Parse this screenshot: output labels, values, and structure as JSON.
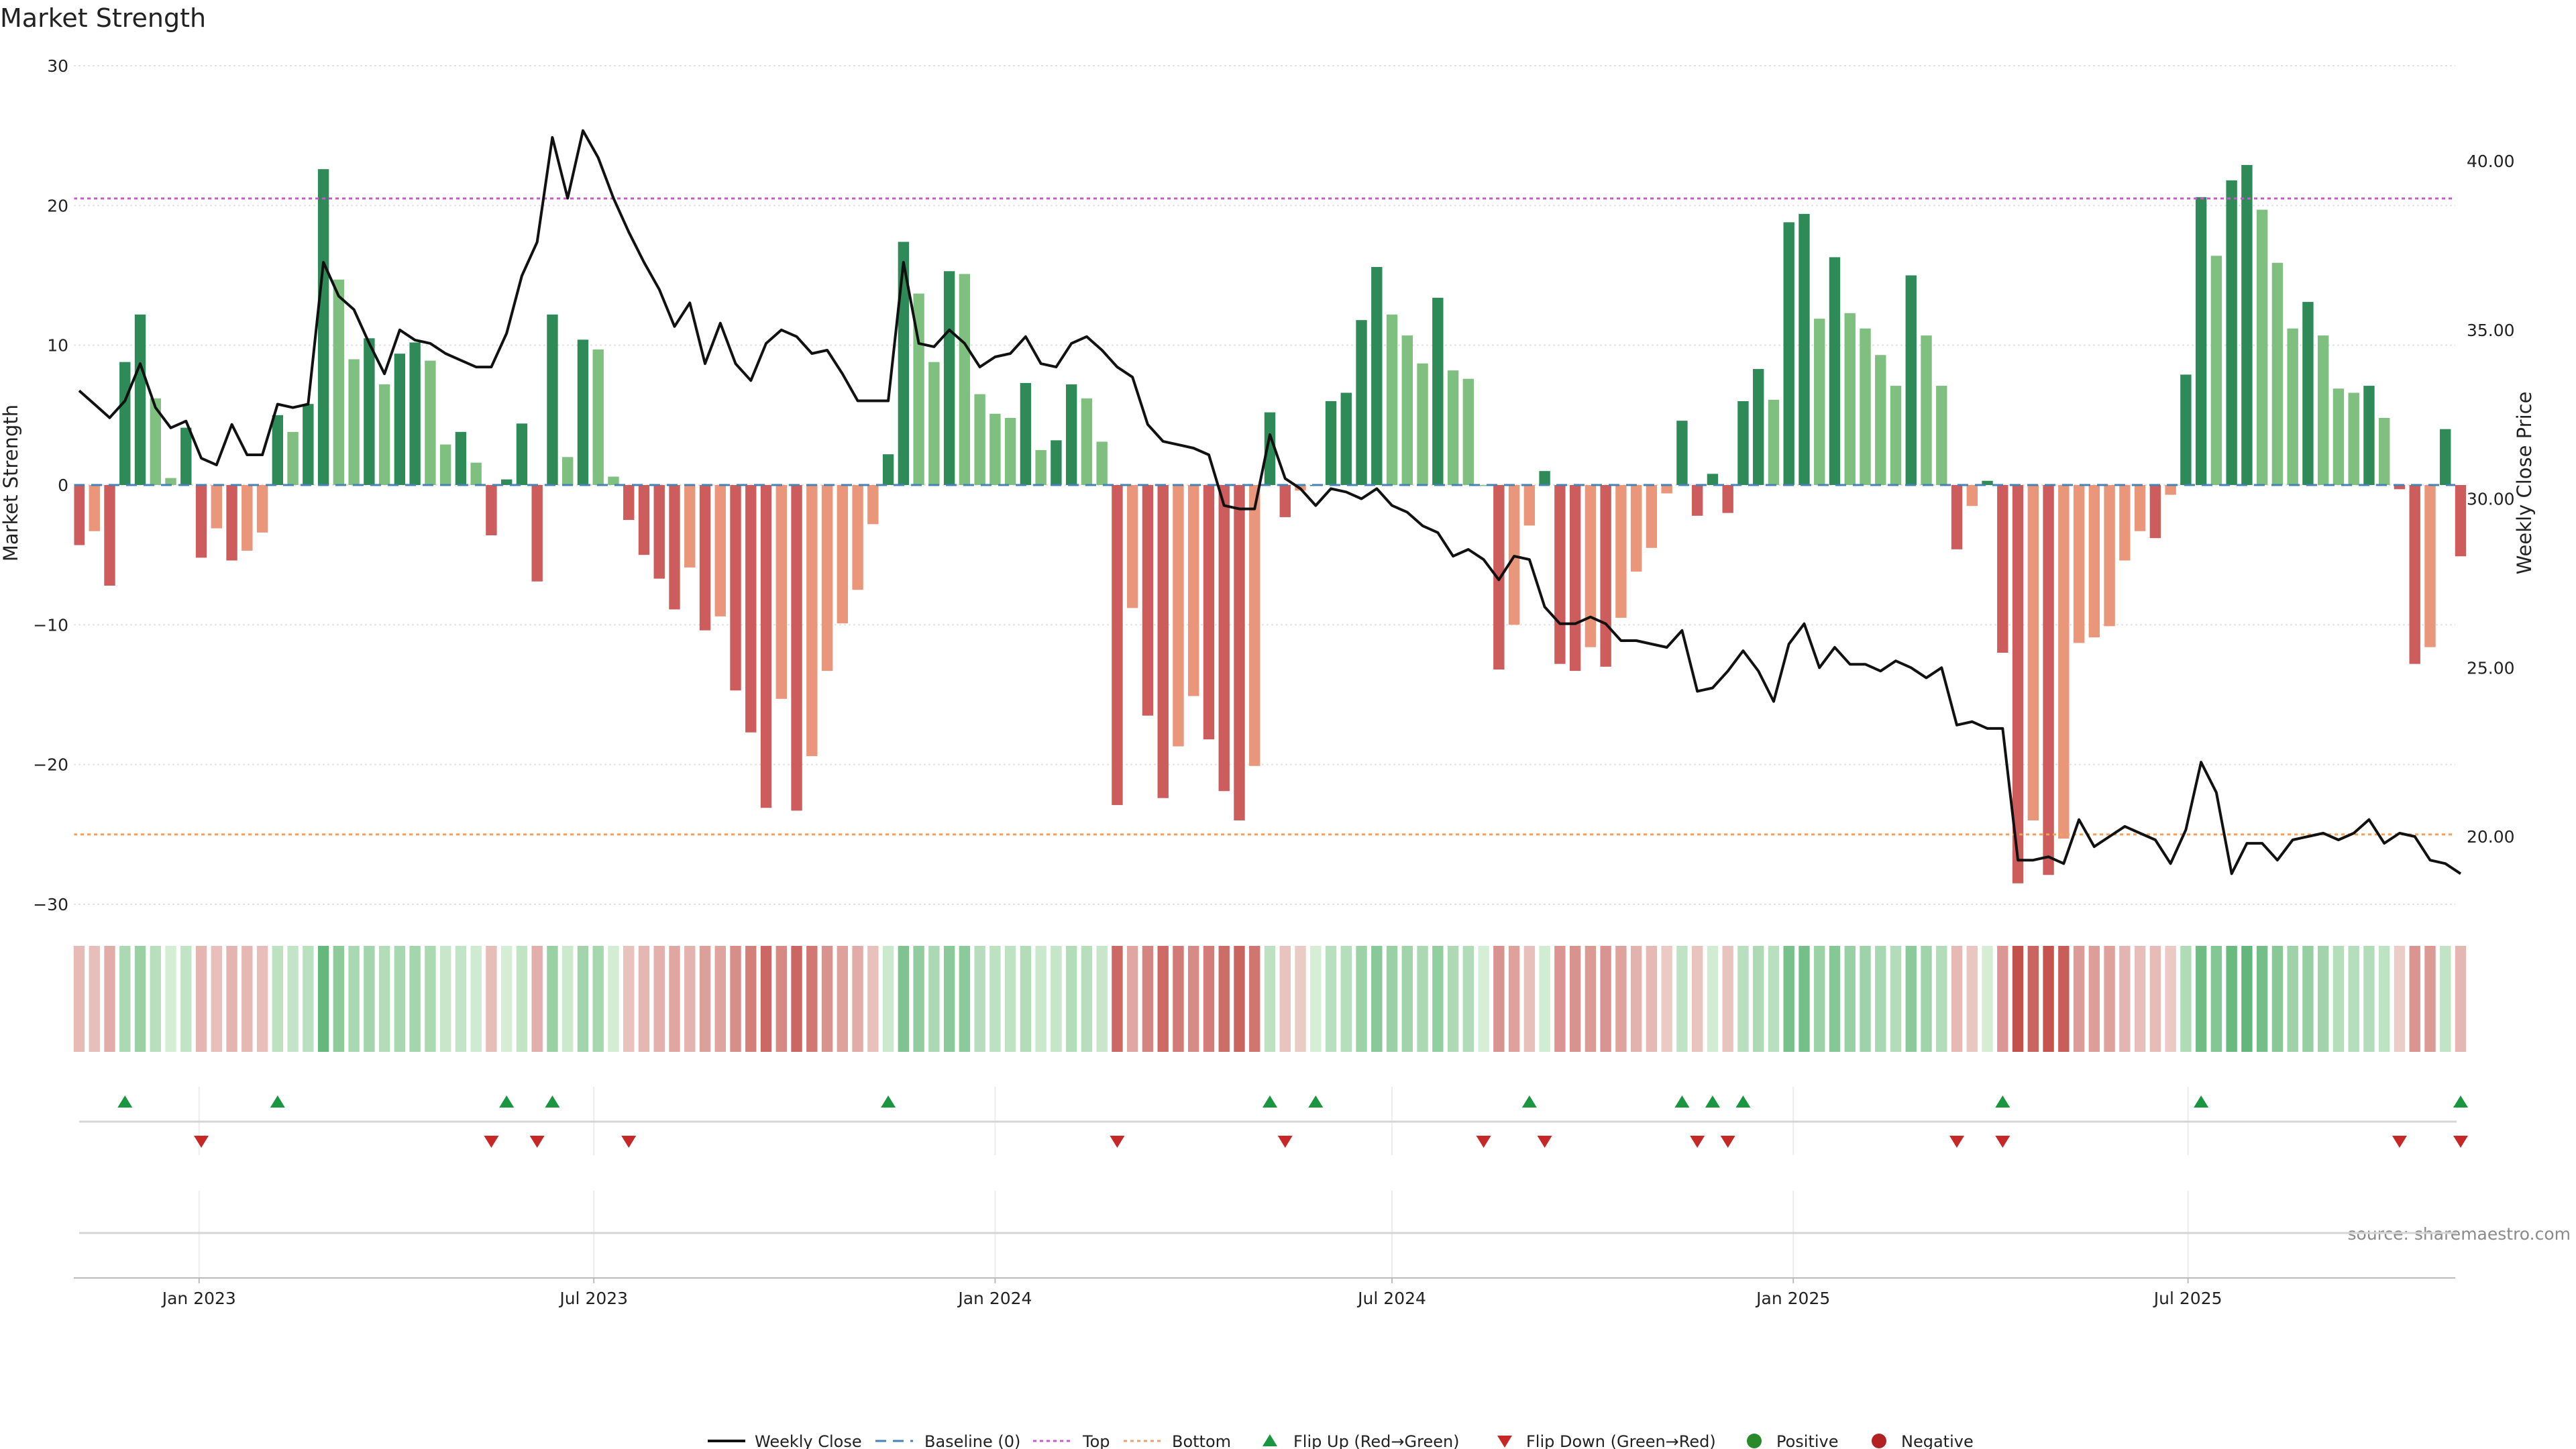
{
  "chart_data": {
    "type": "bar",
    "title": "Market Strength",
    "ylabel": "Market Strength",
    "y2label": "Weekly Close Price",
    "ylim": [
      -30,
      30
    ],
    "y_ticks": [
      30,
      20,
      10,
      0,
      -10,
      -20,
      -30
    ],
    "y2lim": [
      18,
      42
    ],
    "y2_ticks": [
      "40.00",
      "35.00",
      "30.00",
      "25.00",
      "20.00"
    ],
    "x_ticks": [
      {
        "date": "2023-01-01",
        "label": "Jan 2023"
      },
      {
        "date": "2023-07-01",
        "label": "Jul 2023"
      },
      {
        "date": "2024-01-01",
        "label": "Jan 2024"
      },
      {
        "date": "2024-07-01",
        "label": "Jul 2024"
      },
      {
        "date": "2025-01-01",
        "label": "Jan 2025"
      },
      {
        "date": "2025-07-01",
        "label": "Jul 2025"
      }
    ],
    "start_date": "2022-11-07",
    "top_threshold": 20.5,
    "bottom_threshold": -25,
    "strength": [
      -4.3,
      -3.3,
      -7.2,
      8.8,
      12.2,
      6.2,
      0.5,
      4.1,
      -5.2,
      -3.1,
      -5.4,
      -4.7,
      -3.4,
      5.0,
      3.8,
      5.8,
      22.6,
      14.7,
      9.0,
      10.5,
      7.2,
      9.4,
      10.2,
      8.9,
      2.9,
      3.8,
      1.6,
      -3.6,
      0.4,
      4.4,
      -6.9,
      12.2,
      2.0,
      10.4,
      9.7,
      0.6,
      -2.5,
      -5.0,
      -6.7,
      -8.9,
      -5.9,
      -10.4,
      -9.4,
      -14.7,
      -17.7,
      -23.1,
      -15.3,
      -23.3,
      -19.4,
      -13.3,
      -9.9,
      -7.5,
      -2.8,
      2.2,
      17.4,
      13.7,
      8.8,
      15.3,
      15.1,
      6.5,
      5.1,
      4.8,
      7.3,
      2.5,
      3.2,
      7.2,
      6.2,
      3.1,
      -22.9,
      -8.8,
      -16.5,
      -22.4,
      -18.7,
      -15.1,
      -18.2,
      -21.9,
      -24.0,
      -20.1,
      5.2,
      -2.3,
      -0.4,
      0.0,
      6.0,
      6.6,
      11.8,
      15.6,
      12.2,
      10.7,
      8.7,
      13.4,
      8.2,
      7.6,
      0.0,
      -13.2,
      -10.0,
      -2.9,
      1.0,
      -12.8,
      -13.3,
      -11.6,
      -13.0,
      -9.5,
      -6.2,
      -4.5,
      -0.6,
      4.6,
      -2.2,
      0.8,
      -2.0,
      6.0,
      8.3,
      6.1,
      18.8,
      19.4,
      11.9,
      16.3,
      12.3,
      11.2,
      9.3,
      7.1,
      15.0,
      10.7,
      7.1,
      -4.6,
      -1.5,
      0.3,
      -12.0,
      -28.5,
      -24.0,
      -27.9,
      -25.3,
      -11.3,
      -10.9,
      -10.1,
      -5.4,
      -3.3,
      -3.8,
      -0.7,
      7.9,
      20.6,
      16.4,
      21.8,
      22.9,
      19.7,
      15.9,
      11.2,
      13.1,
      10.7,
      6.9,
      6.6,
      7.1,
      4.8,
      -0.3,
      -12.8,
      -11.6,
      4.0,
      -5.1
    ],
    "weekly_close": [
      33.2,
      32.8,
      32.4,
      32.9,
      34.0,
      32.7,
      32.1,
      32.3,
      31.2,
      31.0,
      32.2,
      31.3,
      31.3,
      32.8,
      32.7,
      32.8,
      37.0,
      36.0,
      35.6,
      34.6,
      33.7,
      35.0,
      34.7,
      34.6,
      34.3,
      34.1,
      33.9,
      33.9,
      34.9,
      36.6,
      37.6,
      40.7,
      38.9,
      40.9,
      40.1,
      38.9,
      37.9,
      37.0,
      36.2,
      35.1,
      35.8,
      34.0,
      35.2,
      34.0,
      33.5,
      34.6,
      35.0,
      34.8,
      34.3,
      34.4,
      33.7,
      32.9,
      32.9,
      32.9,
      37.0,
      34.6,
      34.5,
      35.0,
      34.6,
      33.9,
      34.2,
      34.3,
      34.8,
      34.0,
      33.9,
      34.6,
      34.8,
      34.4,
      33.9,
      33.6,
      32.2,
      31.7,
      31.6,
      31.5,
      31.3,
      29.8,
      29.7,
      29.7,
      31.9,
      30.6,
      30.3,
      29.8,
      30.3,
      30.2,
      30.0,
      30.3,
      29.8,
      29.6,
      29.2,
      29.0,
      28.3,
      28.5,
      28.2,
      27.6,
      28.3,
      28.2,
      26.8,
      26.3,
      26.3,
      26.5,
      26.3,
      25.8,
      25.8,
      25.7,
      25.6,
      26.1,
      24.3,
      24.4,
      24.9,
      25.5,
      24.9,
      24.0,
      25.7,
      26.3,
      25.0,
      25.6,
      25.1,
      25.1,
      24.9,
      25.2,
      25.0,
      24.7,
      25.0,
      23.3,
      23.4,
      23.2,
      23.2,
      19.3,
      19.3,
      19.4,
      19.2,
      20.5,
      19.7,
      20.0,
      20.3,
      20.1,
      19.9,
      19.2,
      20.2,
      22.2,
      21.3,
      18.9,
      19.8,
      19.8,
      19.3,
      19.9,
      20.0,
      20.1,
      19.9,
      20.1,
      20.5,
      19.8,
      20.1,
      20.0,
      19.3,
      19.2,
      18.9
    ],
    "flip_up_weeks": [
      3,
      13,
      28,
      31,
      53,
      78,
      81,
      95,
      105,
      107,
      109,
      126,
      139,
      156
    ],
    "flip_down_weeks": [
      8,
      27,
      30,
      36,
      68,
      79,
      92,
      96,
      106,
      108,
      123,
      126,
      152,
      156
    ],
    "legend": [
      "Weekly Close",
      "Baseline (0)",
      "Top",
      "Bottom",
      "Flip Up (Red→Green)",
      "Flip Down (Green→Red)",
      "Positive",
      "Negative"
    ],
    "source": "source: sharemaestro.com",
    "colors": {
      "pos_strong": "#2e8b57",
      "pos_light": "#7fbf7f",
      "neg_strong": "#cd5c5c",
      "neg_light": "#e9967a",
      "top_line": "#c060c0",
      "bottom_line": "#f0a060",
      "baseline": "#4682b4",
      "flip_up": "#1a9641",
      "flip_down": "#c62828",
      "positive_dot": "#2a8a2a",
      "negative_dot": "#b22222",
      "price": "#111111"
    }
  }
}
